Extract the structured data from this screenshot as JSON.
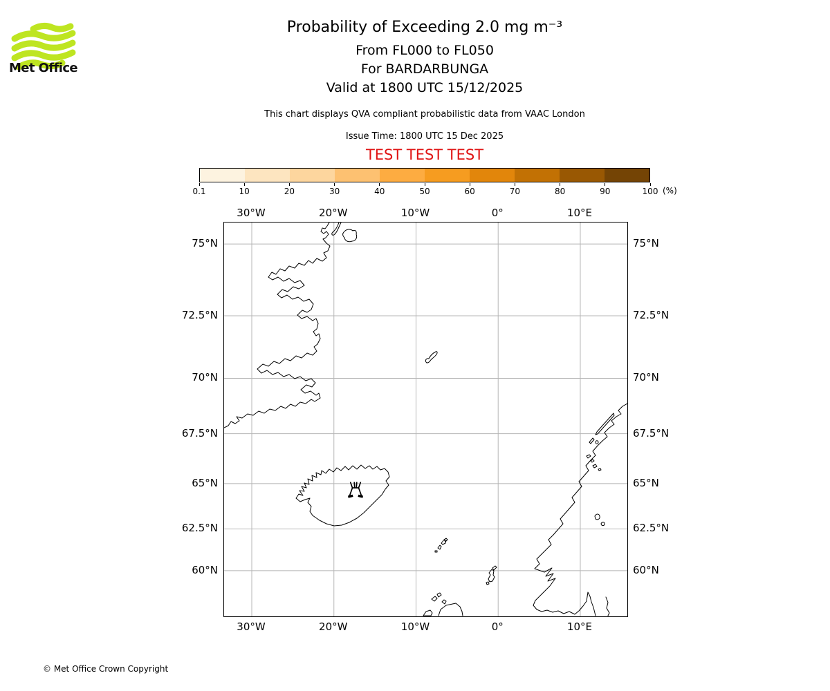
{
  "logo": {
    "brand": "Met Office",
    "wave_color": "#bee521"
  },
  "header": {
    "title": "Probability of Exceeding 2.0 mg m⁻³",
    "level_range": "From FL000 to FL050",
    "volcano_line": "For BARDARBUNGA",
    "valid_line": "Valid at 1800 UTC 15/12/2025",
    "disclaimer": "This chart displays QVA compliant probabilistic data from VAAC London",
    "issue_time": "Issue Time: 1800 UTC 15 Dec 2025",
    "test_banner": "TEST TEST TEST"
  },
  "colorbar": {
    "tick_labels": [
      "0.1",
      "10",
      "20",
      "30",
      "40",
      "50",
      "60",
      "70",
      "80",
      "90",
      "100"
    ],
    "unit": "(%)",
    "colors": [
      "#fdf3e0",
      "#fde5c0",
      "#fdd69e",
      "#fdc171",
      "#fdac41",
      "#f69c20",
      "#e2860b",
      "#c27104",
      "#995803",
      "#744405"
    ]
  },
  "map": {
    "lon_ticks": [
      {
        "label": "30°W",
        "deg": -30
      },
      {
        "label": "20°W",
        "deg": -20
      },
      {
        "label": "10°W",
        "deg": -10
      },
      {
        "label": "0°",
        "deg": 0
      },
      {
        "label": "10°E",
        "deg": 10
      }
    ],
    "lat_ticks": [
      {
        "label": "75°N",
        "deg": 75
      },
      {
        "label": "72.5°N",
        "deg": 72.5
      },
      {
        "label": "70°N",
        "deg": 70
      },
      {
        "label": "67.5°N",
        "deg": 67.5
      },
      {
        "label": "65°N",
        "deg": 65
      },
      {
        "label": "62.5°N",
        "deg": 62.5
      },
      {
        "label": "60°N",
        "deg": 60
      }
    ]
  },
  "colors": {
    "test_banner": "#e01414",
    "grid": "#b5b5b5",
    "coastline": "#000000"
  },
  "footer": {
    "copyright": "© Met Office Crown Copyright"
  }
}
